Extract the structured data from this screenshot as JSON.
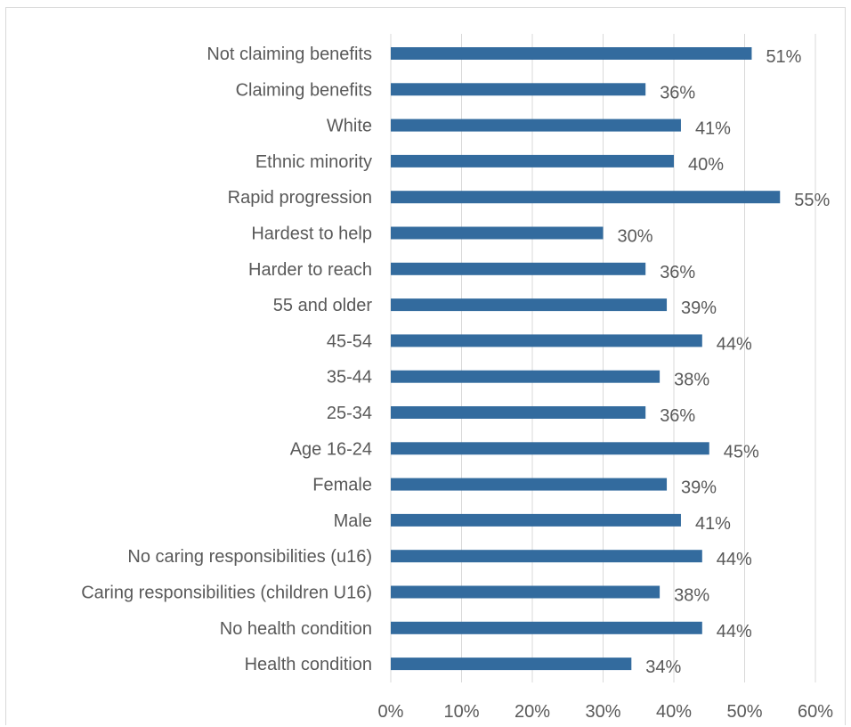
{
  "chart_data": {
    "type": "bar",
    "orientation": "horizontal",
    "categories": [
      "Not claiming benefits",
      "Claiming benefits",
      "White",
      "Ethnic minority",
      "Rapid progression",
      "Hardest to help",
      "Harder to reach",
      "55 and older",
      "45-54",
      "35-44",
      "25-34",
      "Age 16-24",
      "Female",
      "Male",
      "No caring responsibilities (u16)",
      "Caring responsibilities (children U16)",
      "No health condition",
      "Health condition"
    ],
    "series": [
      {
        "values": [
          51,
          36,
          41,
          40,
          55,
          30,
          36,
          39,
          44,
          38,
          36,
          45,
          39,
          41,
          44,
          38,
          44,
          34
        ],
        "data_labels": [
          "51%",
          "36%",
          "41%",
          "40%",
          "55%",
          "30%",
          "36%",
          "39%",
          "44%",
          "38%",
          "36%",
          "45%",
          "39%",
          "41%",
          "44%",
          "38%",
          "44%",
          "34%"
        ]
      }
    ],
    "xlim": [
      0,
      60
    ],
    "x_ticks": [
      0,
      10,
      20,
      30,
      40,
      50,
      60
    ],
    "x_tick_labels": [
      "0%",
      "10%",
      "20%",
      "30%",
      "40%",
      "50%",
      "60%"
    ],
    "grid": "vertical",
    "legend": "none",
    "title": "",
    "xlabel": "",
    "ylabel": "",
    "colors": {
      "bar": "#336b9e",
      "grid": "#d9d9d9",
      "text": "#595959"
    }
  }
}
